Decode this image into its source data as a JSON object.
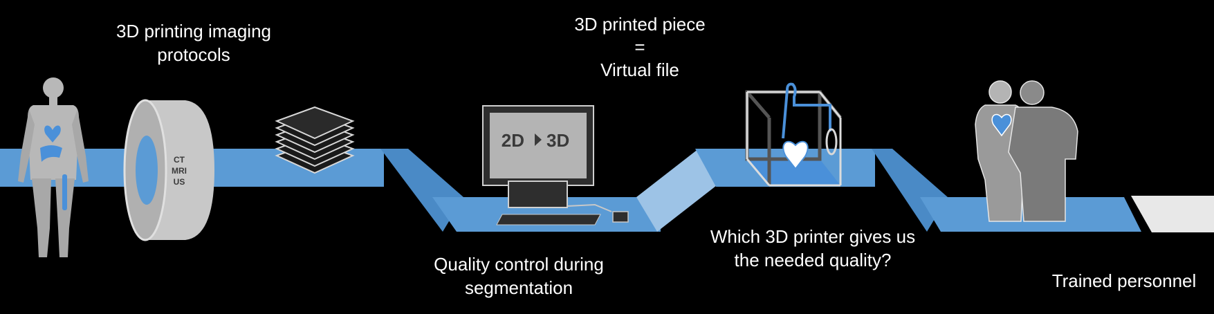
{
  "labels": {
    "imaging_protocols": [
      "3D printing imaging",
      "protocols"
    ],
    "printed_piece": [
      "3D printed piece",
      "=",
      "Virtual file"
    ],
    "quality_control": [
      "Quality control during",
      "segmentation"
    ],
    "printer_quality": [
      "Which 3D printer gives us",
      "the needed quality?"
    ],
    "trained_personnel": "Trained personnel"
  },
  "scanner": {
    "modalities": [
      "CT",
      "MRI",
      "US"
    ]
  },
  "monitor": {
    "left_text": "2D",
    "right_text": "3D",
    "arrow": "triangle-right-icon"
  },
  "colors": {
    "background": "#000000",
    "ribbon": "#5b9bd5",
    "ribbon_fold": "#9dc3e6",
    "device_gray": "#c8c8c8",
    "figure_gray": "#b4b4b4",
    "accent_blue": "#4a90d9",
    "label_text": "#ffffff"
  }
}
